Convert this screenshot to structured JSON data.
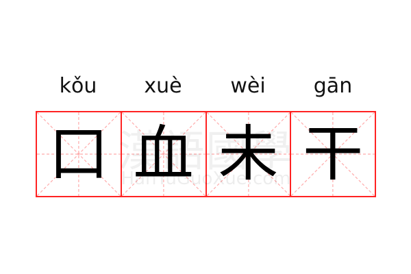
{
  "entries": [
    {
      "pinyin": "kǒu",
      "char": "口"
    },
    {
      "pinyin": "xuè",
      "char": "血"
    },
    {
      "pinyin": "wèi",
      "char": "未"
    },
    {
      "pinyin": "gān",
      "char": "干"
    }
  ],
  "watermark": {
    "cn": "漢語國學",
    "site": "HanYuGuoXue.com"
  },
  "colors": {
    "grid": "#ff2222",
    "guide": "#ffaaaa"
  }
}
